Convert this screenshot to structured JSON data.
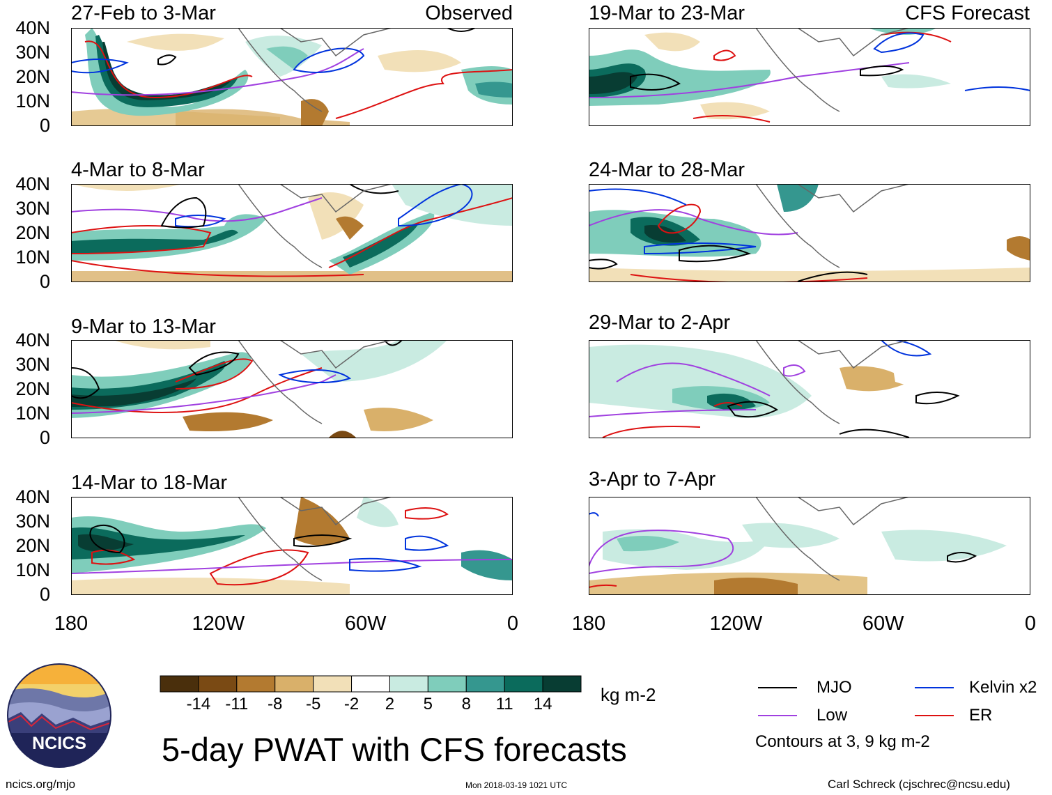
{
  "figure": {
    "title": "5-day PWAT with CFS forecasts",
    "observed_label": "Observed",
    "forecast_label": "CFS Forecast",
    "units": "kg m-2",
    "contour_note": "Contours at 3, 9 kg m-2"
  },
  "panels_left": [
    {
      "title": "27-Feb to 3-Mar"
    },
    {
      "title": "4-Mar to 8-Mar"
    },
    {
      "title": "9-Mar to 13-Mar"
    },
    {
      "title": "14-Mar to 18-Mar"
    }
  ],
  "panels_right": [
    {
      "title": "19-Mar to 23-Mar"
    },
    {
      "title": "24-Mar to 28-Mar"
    },
    {
      "title": "29-Mar to 2-Apr"
    },
    {
      "title": "3-Apr to 7-Apr"
    }
  ],
  "axes": {
    "y_ticks": [
      "40N",
      "30N",
      "20N",
      "10N",
      "0"
    ],
    "x_ticks": [
      "180",
      "120W",
      "60W",
      "0"
    ]
  },
  "colorbar": {
    "labels": [
      "-14",
      "-11",
      "-8",
      "-5",
      "-2",
      "2",
      "5",
      "8",
      "11",
      "14"
    ],
    "colors": [
      "#4a2f0c",
      "#7a4a14",
      "#b37a30",
      "#d9b06a",
      "#f2e0b8",
      "#ffffff",
      "#c9ebe1",
      "#7fcdbb",
      "#35978f",
      "#0b6b5c",
      "#083d33"
    ]
  },
  "legend": [
    {
      "label": "MJO",
      "color": "#000000"
    },
    {
      "label": "Kelvin x2",
      "color": "#0033dd"
    },
    {
      "label": "Low",
      "color": "#a040e0"
    },
    {
      "label": "ER",
      "color": "#dd1111"
    }
  ],
  "logo": {
    "text": "NCICS"
  },
  "footer": {
    "url": "ncics.org/mjo",
    "timestamp": "Mon 2018-03-19 1021 UTC",
    "author": "Carl Schreck (cjschrec@ncsu.edu)"
  }
}
